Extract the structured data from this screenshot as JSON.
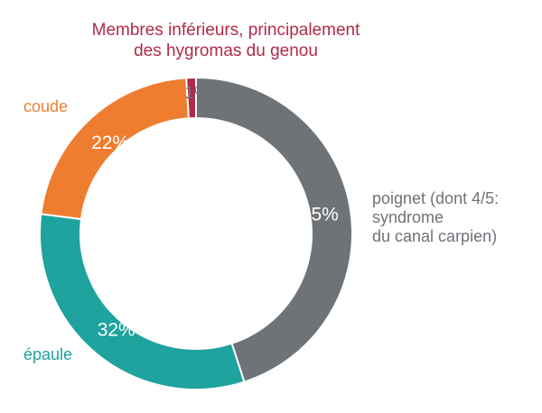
{
  "chart_data": {
    "type": "pie",
    "variant": "donut",
    "slices": [
      {
        "label": "poignet (dont 4/5: syndrome du canal carpien)",
        "value": 45,
        "value_label": "45%",
        "color": "#6e7378"
      },
      {
        "label": "épaule",
        "value": 32,
        "value_label": "32%",
        "color": "#1ea39e"
      },
      {
        "label": "coude",
        "value": 22,
        "value_label": "22%",
        "color": "#ee7d30"
      },
      {
        "label": "Membres inférieurs, principalement des hygromas du genou",
        "value": 1,
        "value_label": "1%",
        "color": "#b22a4a"
      }
    ],
    "start_angle_deg": 0,
    "direction": "clockwise"
  },
  "labels": {
    "top_line1": "Membres inférieurs, principalement",
    "top_line2": "des hygromas du genou",
    "coude": "coude",
    "epaule": "épaule",
    "poignet_line1": "poignet (dont 4/5:",
    "poignet_line2": "syndrome",
    "poignet_line3": "du canal carpien)"
  }
}
